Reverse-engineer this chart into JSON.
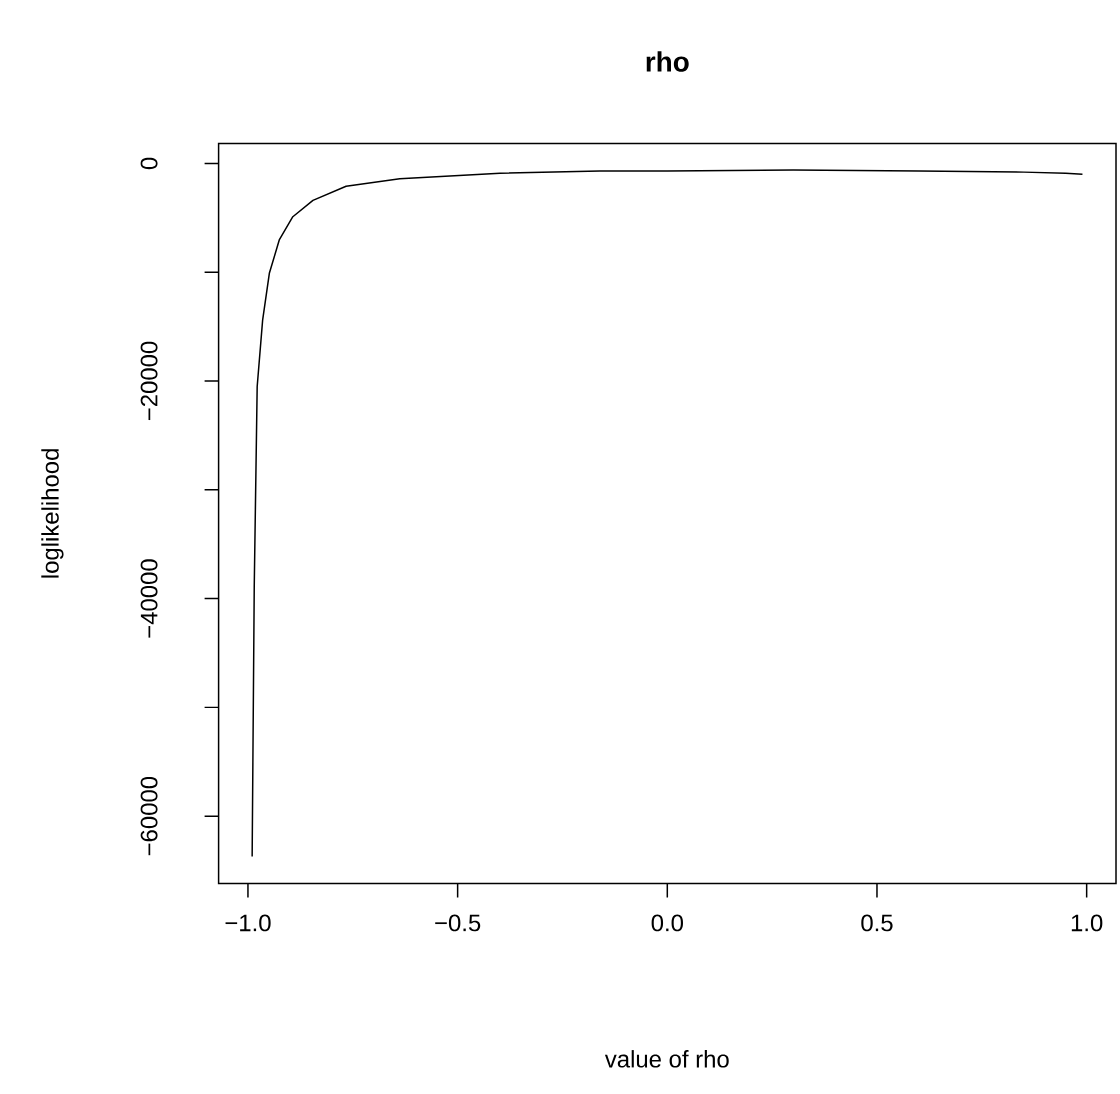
{
  "chart_data": {
    "type": "line",
    "title": "rho",
    "xlabel": "value of  rho",
    "ylabel": "loglikelihood",
    "x": [
      -0.99,
      -0.985,
      -0.978,
      -0.965,
      -0.949,
      -0.925,
      -0.893,
      -0.845,
      -0.766,
      -0.638,
      -0.399,
      -0.161,
      0.0,
      0.3,
      0.6,
      0.85,
      0.95,
      0.99
    ],
    "series": [
      {
        "color": "#000000",
        "values": [
          -63700,
          -38900,
          -20500,
          -14400,
          -10100,
          -7000,
          -4900,
          -3400,
          -2100,
          -1400,
          -900,
          -700,
          -700,
          -600,
          -700,
          -800,
          -900,
          -1000
        ]
      }
    ],
    "xlim": [
      -1.07,
      1.07
    ],
    "ylim": [
      -66180,
      1840
    ],
    "xticks": [
      {
        "value": -1,
        "label": "−1.0"
      },
      {
        "value": -0.5,
        "label": "−0.5"
      },
      {
        "value": 0,
        "label": "0.0"
      },
      {
        "value": 0.5,
        "label": "0.5"
      },
      {
        "value": 1,
        "label": "1.0"
      }
    ],
    "yticks": [
      {
        "value": -60000,
        "label": "−60000"
      },
      {
        "value": -50000,
        "label": null
      },
      {
        "value": -40000,
        "label": "−40000"
      },
      {
        "value": -30000,
        "label": null
      },
      {
        "value": -20000,
        "label": "−20000"
      },
      {
        "value": -10000,
        "label": null
      },
      0
    ],
    "grid": false,
    "marker": "none",
    "line_style": "solid"
  }
}
